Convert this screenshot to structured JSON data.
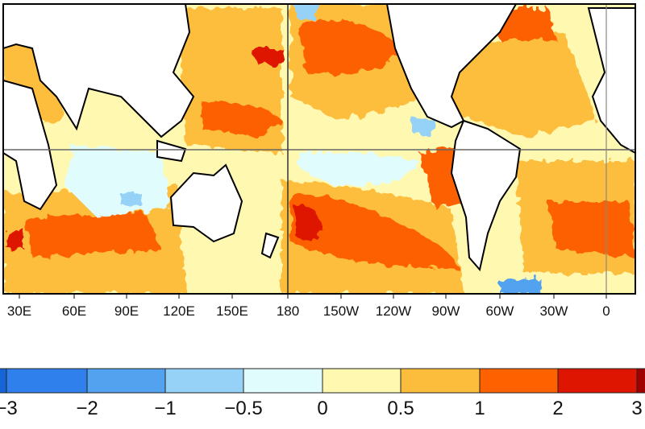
{
  "map": {
    "lon_ticks": [
      "30E",
      "60E",
      "90E",
      "120E",
      "150E",
      "180",
      "150W",
      "120W",
      "90W",
      "60W",
      "30W",
      "0"
    ],
    "colors": {
      "land": "#ffffff",
      "coast": "#000000"
    }
  },
  "colorbar": {
    "labels": [
      "−3",
      "−2",
      "−1",
      "−0.5",
      "0",
      "0.5",
      "1",
      "2",
      "3"
    ],
    "colors": [
      "#1565d8",
      "#2f80ec",
      "#52a2f0",
      "#96d2f8",
      "#e0fcfc",
      "#fff8b0",
      "#fdbd3c",
      "#fd6100",
      "#de1500",
      "#a00000"
    ]
  }
}
